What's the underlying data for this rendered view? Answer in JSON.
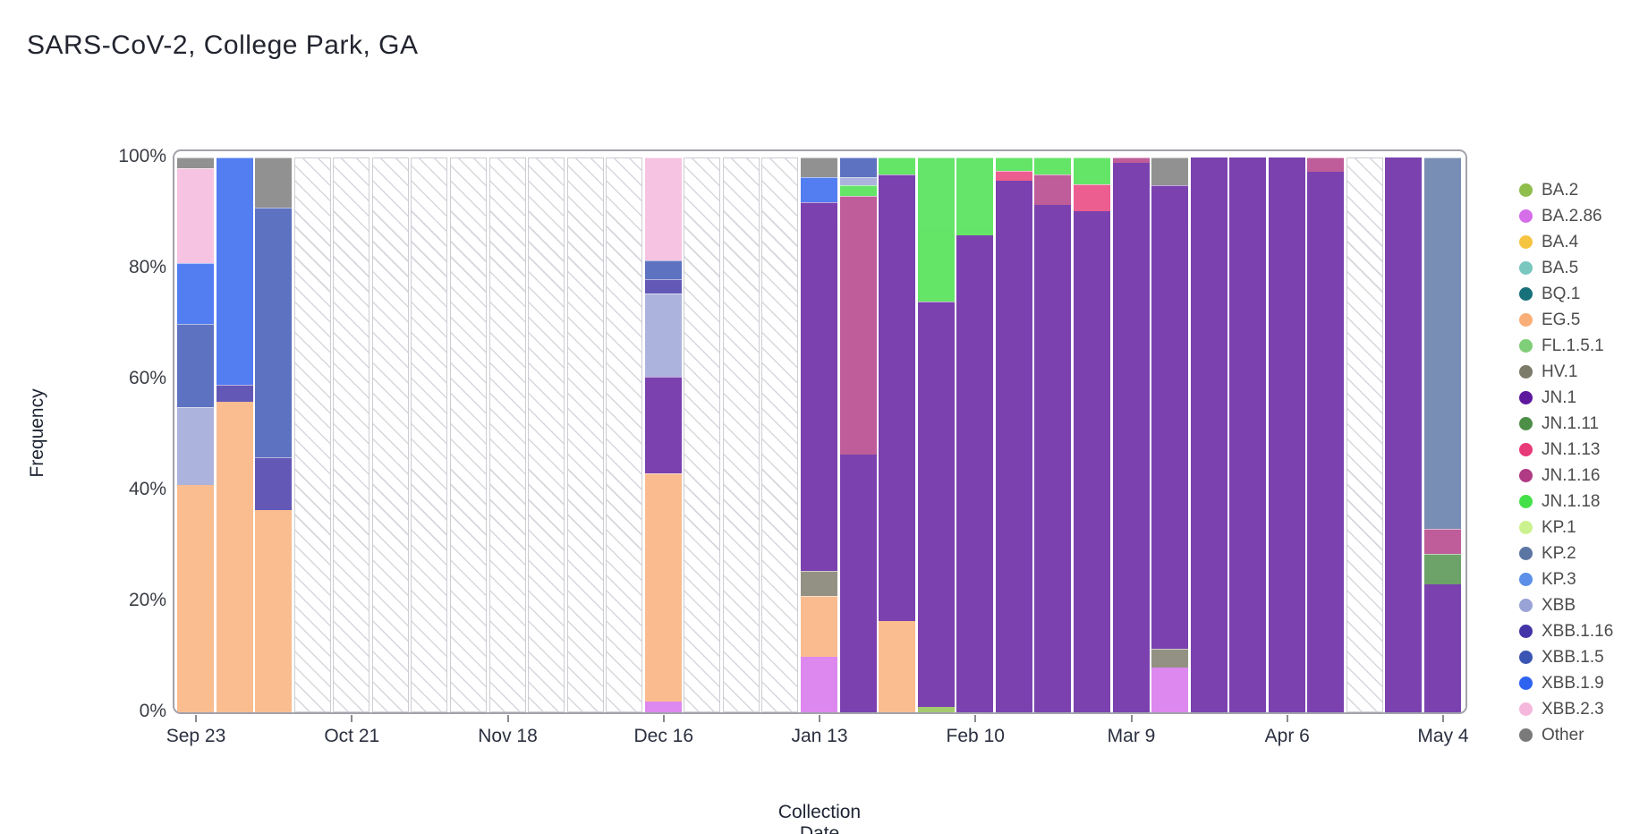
{
  "title": "SARS-CoV-2, College Park, GA",
  "x_axis": {
    "title": "Collection Date",
    "tick_labels": [
      "Sep 23",
      "Oct 21",
      "Nov 18",
      "Dec 16",
      "Jan 13",
      "Feb 10",
      "Mar 9",
      "Apr 6",
      "May 4"
    ]
  },
  "y_axis": {
    "title": "Frequency",
    "tick_labels": [
      "100%",
      "80%",
      "60%",
      "40%",
      "20%",
      "0%"
    ],
    "tick_values": [
      100,
      80,
      60,
      40,
      20,
      0
    ]
  },
  "legend": {
    "items": [
      {
        "label": "BA.2",
        "color": "#8FBE4D"
      },
      {
        "label": "BA.2.86",
        "color": "#D66EEA"
      },
      {
        "label": "BA.4",
        "color": "#F5C542"
      },
      {
        "label": "BA.5",
        "color": "#79C7BF"
      },
      {
        "label": "BQ.1",
        "color": "#17707A"
      },
      {
        "label": "EG.5",
        "color": "#F9AE77"
      },
      {
        "label": "FL.1.5.1",
        "color": "#7FCE78"
      },
      {
        "label": "HV.1",
        "color": "#7C7A68"
      },
      {
        "label": "JN.1",
        "color": "#5E189E"
      },
      {
        "label": "JN.1.11",
        "color": "#4E8F47"
      },
      {
        "label": "JN.1.13",
        "color": "#E83A78"
      },
      {
        "label": "JN.1.16",
        "color": "#B03A83"
      },
      {
        "label": "JN.1.18",
        "color": "#44E048"
      },
      {
        "label": "KP.1",
        "color": "#CCF28F"
      },
      {
        "label": "KP.2",
        "color": "#5C76A4"
      },
      {
        "label": "KP.3",
        "color": "#5B8FE8"
      },
      {
        "label": "XBB",
        "color": "#9AA3D6"
      },
      {
        "label": "XBB.1.16",
        "color": "#4334A8"
      },
      {
        "label": "XBB.1.5",
        "color": "#3A55B4"
      },
      {
        "label": "XBB.1.9",
        "color": "#2E62F0"
      },
      {
        "label": "XBB.2.3",
        "color": "#F5B8DC"
      },
      {
        "label": "Other",
        "color": "#7A7A7A"
      }
    ]
  },
  "chart_data": {
    "type": "bar",
    "stacked": true,
    "unit": "percent",
    "title": "SARS-CoV-2, College Park, GA",
    "xlabel": "Collection Date",
    "ylabel": "Frequency",
    "ylim": [
      0,
      100
    ],
    "grid": false,
    "legend_position": "right",
    "missing_week_style": "white-with-diagonal-hatch",
    "note": "segments are listed bottom-to-top as [variant, percent]; segments=null means no data (hatched bar)",
    "weeks": [
      {
        "date": "Sep 23",
        "tick": "Sep 23",
        "segments": [
          [
            "EG.5",
            41
          ],
          [
            "XBB",
            14
          ],
          [
            "XBB.1.5",
            15
          ],
          [
            "XBB.1.9",
            11
          ],
          [
            "XBB.2.3",
            17
          ],
          [
            "Other",
            2
          ]
        ]
      },
      {
        "date": "Sep 30",
        "segments": [
          [
            "EG.5",
            56
          ],
          [
            "XBB.1.16",
            3
          ],
          [
            "XBB.1.9",
            41
          ]
        ]
      },
      {
        "date": "Oct 7",
        "segments": [
          [
            "EG.5",
            36.5
          ],
          [
            "XBB.1.16",
            9.5
          ],
          [
            "XBB.1.5",
            45
          ],
          [
            "Other",
            9
          ]
        ]
      },
      {
        "date": "Oct 14",
        "segments": null
      },
      {
        "date": "Oct 21",
        "tick": "Oct 21",
        "segments": null
      },
      {
        "date": "Oct 28",
        "segments": null
      },
      {
        "date": "Nov 4",
        "segments": null
      },
      {
        "date": "Nov 11",
        "segments": null
      },
      {
        "date": "Nov 18",
        "tick": "Nov 18",
        "segments": null
      },
      {
        "date": "Nov 25",
        "segments": null
      },
      {
        "date": "Dec 2",
        "segments": null
      },
      {
        "date": "Dec 9",
        "segments": null
      },
      {
        "date": "Dec 16",
        "tick": "Dec 16",
        "segments": [
          [
            "BA.2.86",
            2
          ],
          [
            "EG.5",
            41
          ],
          [
            "JN.1",
            17.5
          ],
          [
            "XBB",
            15
          ],
          [
            "XBB.1.16",
            2.5
          ],
          [
            "XBB.1.5",
            3.5
          ],
          [
            "XBB.2.3",
            18.5
          ]
        ]
      },
      {
        "date": "Dec 23",
        "segments": null
      },
      {
        "date": "Dec 30",
        "segments": null
      },
      {
        "date": "Jan 6",
        "segments": null
      },
      {
        "date": "Jan 13",
        "tick": "Jan 13",
        "segments": [
          [
            "BA.2.86",
            10
          ],
          [
            "EG.5",
            11
          ],
          [
            "HV.1",
            4.5
          ],
          [
            "JN.1",
            66.5
          ],
          [
            "XBB.1.9",
            4.5
          ],
          [
            "Other",
            3.5
          ]
        ]
      },
      {
        "date": "Jan 20",
        "segments": [
          [
            "JN.1",
            46.5
          ],
          [
            "JN.1.16",
            46.5
          ],
          [
            "JN.1.18",
            2
          ],
          [
            "XBB",
            1.5
          ],
          [
            "XBB.1.5",
            3.5
          ]
        ]
      },
      {
        "date": "Jan 27",
        "segments": [
          [
            "EG.5",
            16.5
          ],
          [
            "JN.1",
            80.5
          ],
          [
            "JN.1.18",
            3
          ]
        ]
      },
      {
        "date": "Feb 3",
        "segments": [
          [
            "BA.2",
            1
          ],
          [
            "JN.1",
            73
          ],
          [
            "JN.1.18",
            26
          ]
        ]
      },
      {
        "date": "Feb 10",
        "tick": "Feb 10",
        "segments": [
          [
            "JN.1",
            86
          ],
          [
            "JN.1.18",
            14
          ]
        ]
      },
      {
        "date": "Feb 17",
        "segments": [
          [
            "JN.1",
            95.8
          ],
          [
            "JN.1.13",
            1.8
          ],
          [
            "JN.1.18",
            2.4
          ]
        ]
      },
      {
        "date": "Feb 24",
        "segments": [
          [
            "JN.1",
            91.5
          ],
          [
            "JN.1.16",
            5.5
          ],
          [
            "JN.1.18",
            3
          ]
        ]
      },
      {
        "date": "Mar 2",
        "segments": [
          [
            "JN.1",
            90.4
          ],
          [
            "JN.1.13",
            4.8
          ],
          [
            "JN.1.18",
            4.8
          ]
        ]
      },
      {
        "date": "Mar 9",
        "tick": "Mar 9",
        "segments": [
          [
            "JN.1",
            99
          ],
          [
            "JN.1.16",
            1
          ]
        ]
      },
      {
        "date": "Mar 16",
        "segments": [
          [
            "BA.2.86",
            8
          ],
          [
            "HV.1",
            3.5
          ],
          [
            "JN.1",
            83.5
          ],
          [
            "Other",
            5
          ]
        ]
      },
      {
        "date": "Mar 23",
        "segments": [
          [
            "JN.1",
            100
          ]
        ]
      },
      {
        "date": "Mar 30",
        "segments": [
          [
            "JN.1",
            100
          ]
        ]
      },
      {
        "date": "Apr 6",
        "tick": "Apr 6",
        "segments": [
          [
            "JN.1",
            100
          ]
        ]
      },
      {
        "date": "Apr 13",
        "segments": [
          [
            "JN.1",
            97.5
          ],
          [
            "JN.1.16",
            2.5
          ]
        ]
      },
      {
        "date": "Apr 20",
        "segments": null
      },
      {
        "date": "Apr 27",
        "segments": [
          [
            "JN.1",
            100
          ]
        ]
      },
      {
        "date": "May 4",
        "tick": "May 4",
        "segments": [
          [
            "JN.1",
            23
          ],
          [
            "JN.1.11",
            5.5
          ],
          [
            "JN.1.16",
            4.5
          ],
          [
            "KP.2",
            67
          ]
        ]
      }
    ]
  },
  "style_colors": {
    "frame_border": "#A2A2AC",
    "hatch_line": "#D6D6DE",
    "hatch_border": "#CDCDD4",
    "tick_mark": "#8A8A90",
    "bar_opacity": "0.82"
  }
}
